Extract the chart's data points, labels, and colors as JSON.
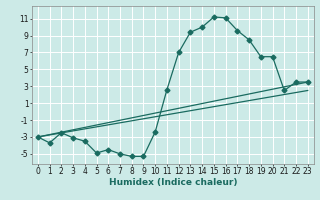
{
  "title": "",
  "xlabel": "Humidex (Indice chaleur)",
  "bg_color": "#cceae7",
  "grid_color": "#ffffff",
  "line_color": "#1a6b60",
  "xlim": [
    -0.5,
    23.5
  ],
  "ylim": [
    -6.2,
    12.5
  ],
  "xticks": [
    0,
    1,
    2,
    3,
    4,
    5,
    6,
    7,
    8,
    9,
    10,
    11,
    12,
    13,
    14,
    15,
    16,
    17,
    18,
    19,
    20,
    21,
    22,
    23
  ],
  "yticks": [
    -5,
    -3,
    -1,
    1,
    3,
    5,
    7,
    9,
    11
  ],
  "series1_x": [
    0,
    1,
    2,
    3,
    4,
    5,
    6,
    7,
    8,
    9,
    10,
    11,
    12,
    13,
    14,
    15,
    16,
    17,
    18,
    19,
    20,
    21,
    22,
    23
  ],
  "series1_y": [
    -3.0,
    -3.7,
    -2.5,
    -3.1,
    -3.5,
    -4.9,
    -4.5,
    -5.0,
    -5.3,
    -5.3,
    -2.4,
    2.6,
    7.0,
    9.4,
    10.0,
    11.2,
    11.1,
    9.6,
    8.5,
    6.5,
    6.5,
    2.5,
    3.5,
    3.5
  ],
  "series2_x": [
    0,
    23
  ],
  "series2_y": [
    -3.0,
    3.5
  ],
  "series3_x": [
    0,
    23
  ],
  "series3_y": [
    -3.0,
    2.5
  ],
  "marker_size": 2.5,
  "line_width": 0.9,
  "tick_fontsize": 5.5,
  "xlabel_fontsize": 6.5
}
